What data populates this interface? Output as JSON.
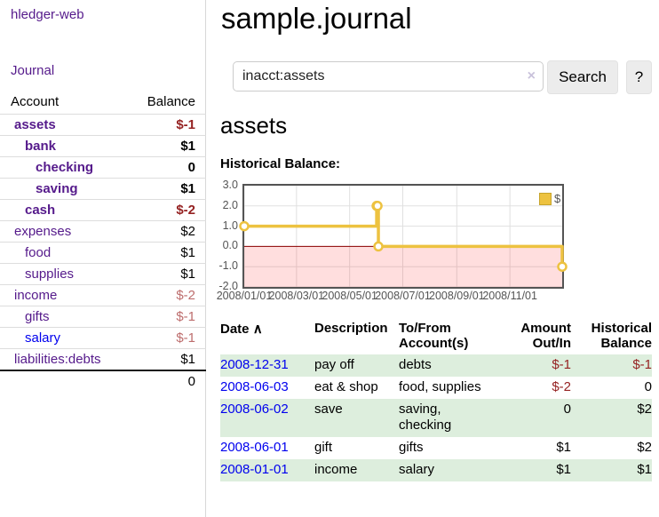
{
  "app": {
    "title": "hledger-web"
  },
  "sidebar": {
    "journal_link": "Journal",
    "accounts_table": {
      "col_account": "Account",
      "col_balance": "Balance",
      "rows": [
        {
          "label": "assets",
          "indent": 0,
          "emphasis": true,
          "link_style": "purple",
          "balance": "$-1",
          "balance_style": "neg-strong"
        },
        {
          "label": "bank",
          "indent": 1,
          "emphasis": true,
          "link_style": "purple",
          "balance": "$1",
          "balance_style": "normal"
        },
        {
          "label": "checking",
          "indent": 2,
          "emphasis": true,
          "link_style": "purple",
          "balance": "0",
          "balance_style": "normal"
        },
        {
          "label": "saving",
          "indent": 2,
          "emphasis": true,
          "link_style": "purple",
          "balance": "$1",
          "balance_style": "normal"
        },
        {
          "label": "cash",
          "indent": 1,
          "emphasis": true,
          "link_style": "purple",
          "balance": "$-2",
          "balance_style": "neg-strong"
        },
        {
          "label": "expenses",
          "indent": 0,
          "emphasis": false,
          "link_style": "purple",
          "balance": "$2",
          "balance_style": "normal"
        },
        {
          "label": "food",
          "indent": 1,
          "emphasis": false,
          "link_style": "purple",
          "balance": "$1",
          "balance_style": "normal"
        },
        {
          "label": "supplies",
          "indent": 1,
          "emphasis": false,
          "link_style": "purple",
          "balance": "$1",
          "balance_style": "normal"
        },
        {
          "label": "income",
          "indent": 0,
          "emphasis": false,
          "link_style": "purple",
          "balance": "$-2",
          "balance_style": "neg-soft"
        },
        {
          "label": "gifts",
          "indent": 1,
          "emphasis": false,
          "link_style": "purple",
          "balance": "$-1",
          "balance_style": "neg-soft"
        },
        {
          "label": "salary",
          "indent": 1,
          "emphasis": false,
          "link_style": "blue",
          "balance": "$-1",
          "balance_style": "neg-soft"
        },
        {
          "label": "liabilities:debts",
          "indent": 0,
          "emphasis": false,
          "link_style": "purple",
          "balance": "$1",
          "balance_style": "normal"
        }
      ],
      "total": "0"
    }
  },
  "main": {
    "title": "sample.journal",
    "search": {
      "value": "inacct:assets",
      "clear_icon": "×",
      "button_label": "Search",
      "help_label": "?"
    },
    "account_heading": "assets",
    "chart_heading": "Historical Balance:"
  },
  "chart_data": {
    "type": "line",
    "subtype": "step",
    "title": "Historical Balance",
    "series": [
      {
        "name": "$",
        "color": "#edc240",
        "points": [
          [
            "2008-01-01",
            1
          ],
          [
            "2008-06-01",
            2
          ],
          [
            "2008-06-02",
            2
          ],
          [
            "2008-06-03",
            0
          ],
          [
            "2008-12-31",
            -1
          ]
        ]
      }
    ],
    "xlim": [
      "2008-01-01",
      "2008-12-31"
    ],
    "ylim": [
      -2,
      3
    ],
    "x_tick_labels": [
      "2008/01/01",
      "2008/03/01",
      "2008/05/01",
      "2008/07/01",
      "2008/09/01",
      "2008/11/01"
    ],
    "y_tick_labels": [
      "3.0",
      "2.0",
      "1.0",
      "0.0",
      "-1.0",
      "-2.0"
    ],
    "y_tick_values": [
      3,
      2,
      1,
      0,
      -1,
      -2
    ],
    "grid": true,
    "legend_position": "top-right",
    "negative_region_color": "rgba(255,0,0,0.13)",
    "zero_line_color": "#8b0000",
    "grid_color": "#e0e0e0",
    "frame_color": "#545454"
  },
  "register_table": {
    "headers": {
      "date": "Date",
      "sort_indicator": "∧",
      "description": "Description",
      "account": "To/From Account(s)",
      "amount": "Amount Out/In",
      "balance": "Historical Balance"
    },
    "rows": [
      {
        "date": "2008-12-31",
        "description": "pay off",
        "account": "debts",
        "amount": "$-1",
        "amount_negative": true,
        "balance": "$-1",
        "balance_negative": true,
        "shaded": true
      },
      {
        "date": "2008-06-03",
        "description": "eat & shop",
        "account": "food, supplies",
        "amount": "$-2",
        "amount_negative": true,
        "balance": "0",
        "balance_negative": false,
        "shaded": false
      },
      {
        "date": "2008-06-02",
        "description": "save",
        "account": "saving, checking",
        "amount": "0",
        "amount_negative": false,
        "balance": "$2",
        "balance_negative": false,
        "shaded": true
      },
      {
        "date": "2008-06-01",
        "description": "gift",
        "account": "gifts",
        "amount": "$1",
        "amount_negative": false,
        "balance": "$2",
        "balance_negative": false,
        "shaded": false
      },
      {
        "date": "2008-01-01",
        "description": "income",
        "account": "salary",
        "amount": "$1",
        "amount_negative": false,
        "balance": "$1",
        "balance_negative": false,
        "shaded": true
      }
    ]
  },
  "colors": {
    "link_purple": "#551a8b",
    "link_blue": "#0000ee",
    "negative_strong": "#952222",
    "negative_soft": "#bd6d6d",
    "row_shade_green": "#ddeedd",
    "series_gold": "#edc240"
  }
}
